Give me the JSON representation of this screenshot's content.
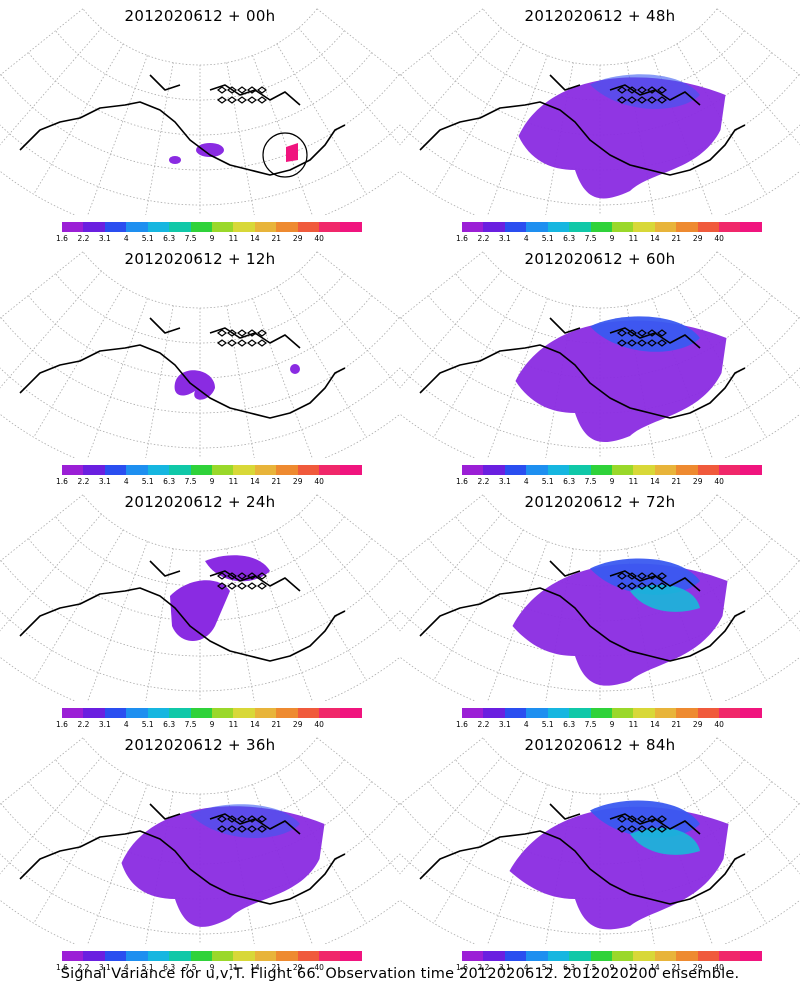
{
  "panels": [
    {
      "title": "2012020612 + 00h",
      "variance_extent": 0.05
    },
    {
      "title": "2012020612 + 48h",
      "variance_extent": 0.55
    },
    {
      "title": "2012020612 + 12h",
      "variance_extent": 0.15
    },
    {
      "title": "2012020612 + 60h",
      "variance_extent": 0.65
    },
    {
      "title": "2012020612 + 24h",
      "variance_extent": 0.3
    },
    {
      "title": "2012020612 + 72h",
      "variance_extent": 0.75
    },
    {
      "title": "2012020612 + 36h",
      "variance_extent": 0.45
    },
    {
      "title": "2012020612 + 84h",
      "variance_extent": 0.85
    }
  ],
  "colorbar": {
    "labels": [
      "1.6",
      "2.2",
      "3.1",
      "4",
      "5.1",
      "6.3",
      "7.5",
      "9",
      "11",
      "14",
      "21",
      "29",
      "40"
    ],
    "colors": [
      "#9b1fd6",
      "#6a1fe0",
      "#2a4ef0",
      "#1e8ff0",
      "#16b6e0",
      "#10c8a8",
      "#2fd23a",
      "#9ad82a",
      "#d8d838",
      "#e8b43a",
      "#ee8a30",
      "#f05a3c",
      "#f0286a",
      "#f0147e"
    ]
  },
  "caption": "Signal Variance for u,v,T. Flight 66. Observation time 2012020612. 2012020200 ensemble."
}
